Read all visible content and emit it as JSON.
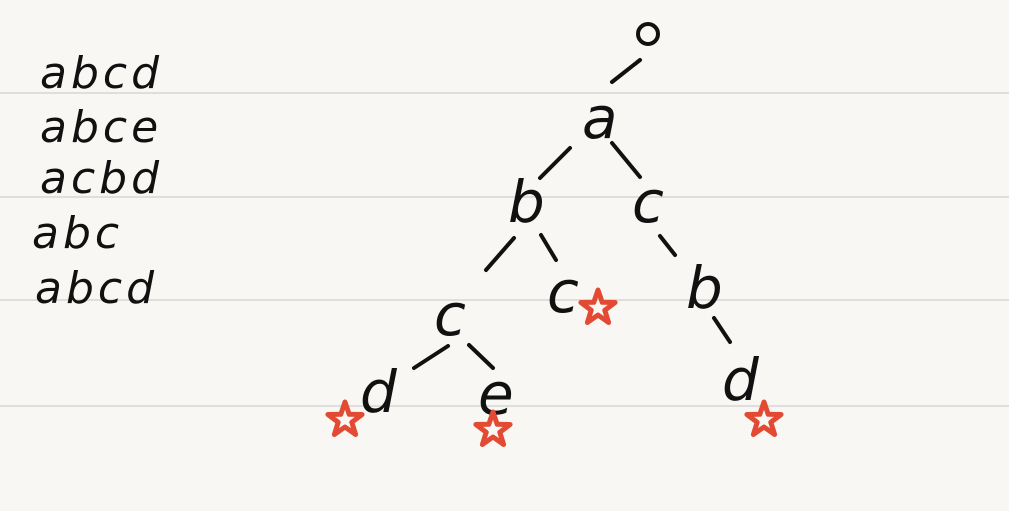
{
  "words": [
    "abcd",
    "abce",
    "acbd",
    "abc",
    "abcd"
  ],
  "root_glyph": "o",
  "nodes": {
    "a": "a",
    "b": "b",
    "c_top": "c",
    "c_mid": "c",
    "c_leaf": "c",
    "b_right": "b",
    "d_left": "d",
    "e": "e",
    "d_right": "d"
  },
  "end_marker_color": "#e34a33",
  "paper_color": "#f8f7f3"
}
